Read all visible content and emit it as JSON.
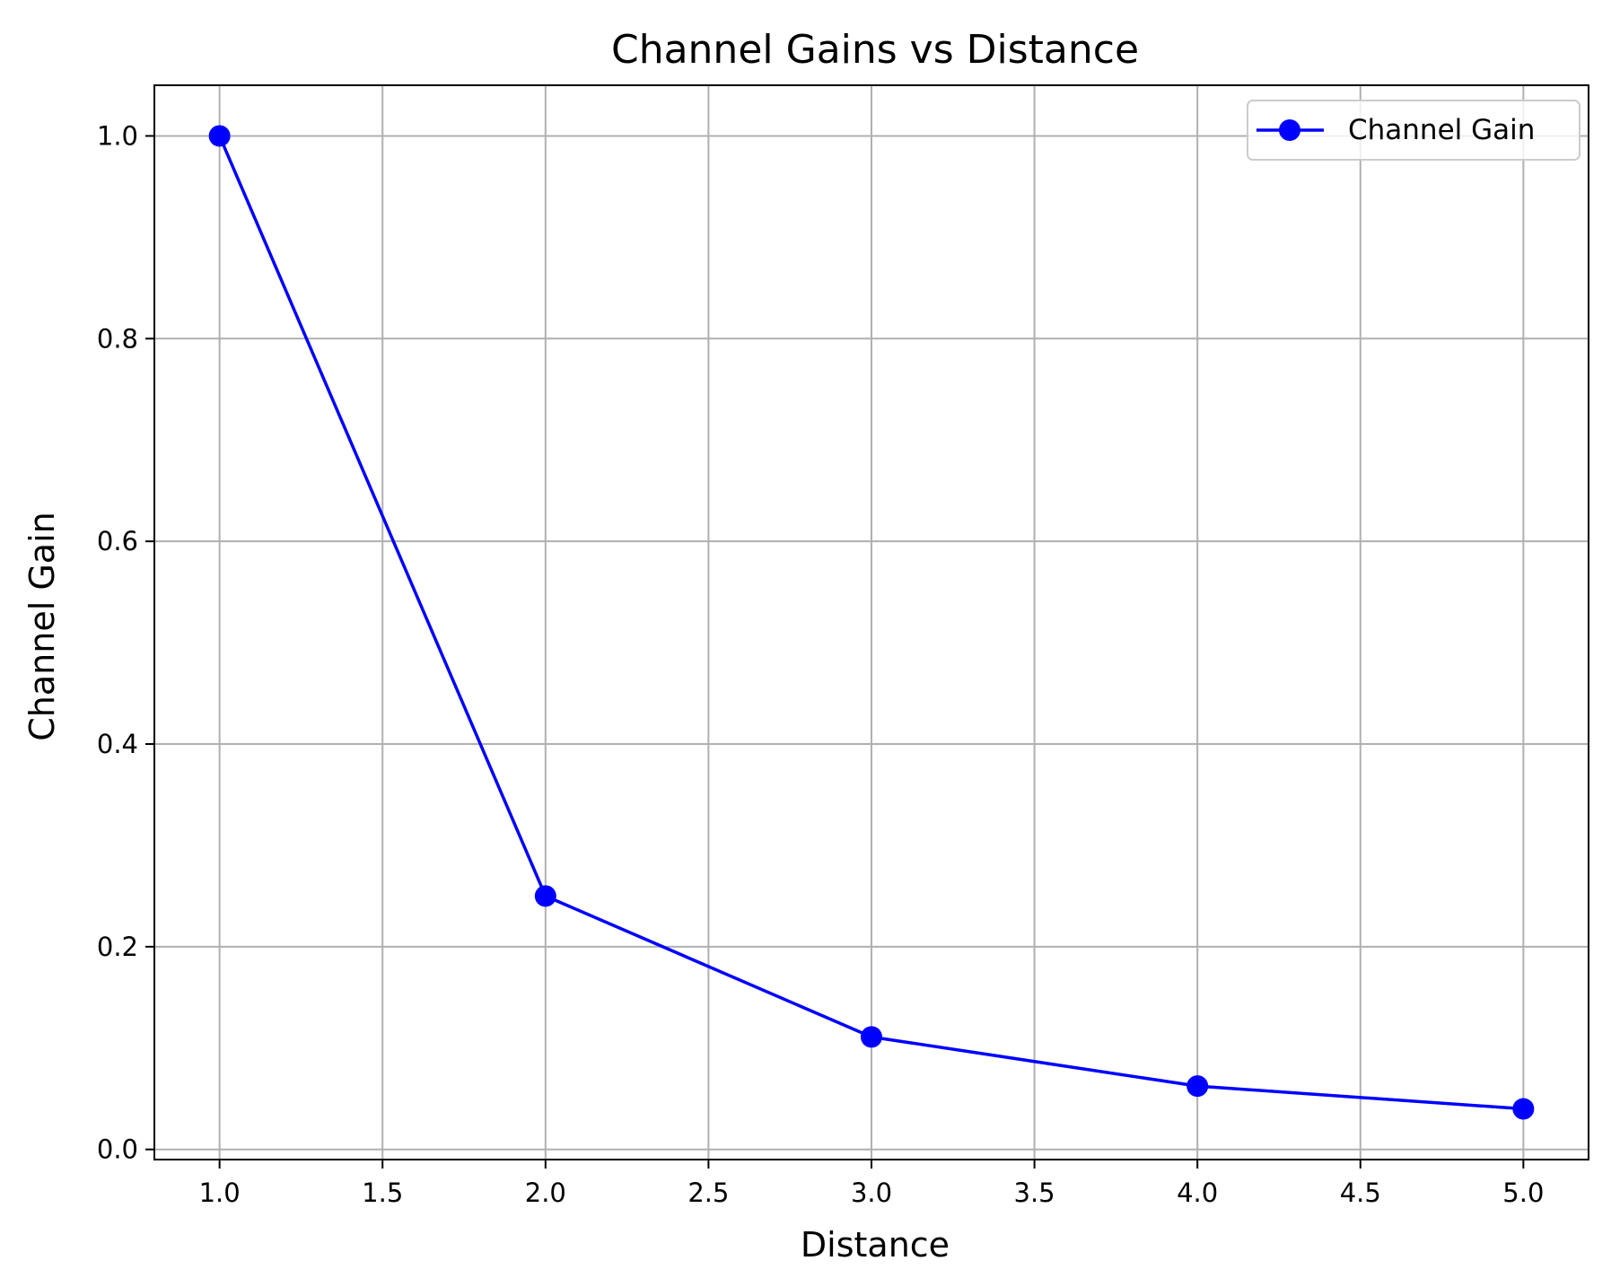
{
  "chart_data": {
    "type": "line",
    "title": "Channel Gains vs Distance",
    "xlabel": "Distance",
    "ylabel": "Channel Gain",
    "xlim": [
      0.8,
      5.2
    ],
    "ylim": [
      -0.01,
      1.05
    ],
    "xticks": [
      1.0,
      1.5,
      2.0,
      2.5,
      3.0,
      3.5,
      4.0,
      4.5,
      5.0
    ],
    "xtick_labels": [
      "1.0",
      "1.5",
      "2.0",
      "2.5",
      "3.0",
      "3.5",
      "4.0",
      "4.5",
      "5.0"
    ],
    "yticks": [
      0.0,
      0.2,
      0.4,
      0.6,
      0.8,
      1.0
    ],
    "ytick_labels": [
      "0.0",
      "0.2",
      "0.4",
      "0.6",
      "0.8",
      "1.0"
    ],
    "grid": true,
    "legend_position": "top-right",
    "series": [
      {
        "name": "Channel Gain",
        "color": "#0000ff",
        "marker": "circle",
        "x": [
          1.0,
          2.0,
          3.0,
          4.0,
          5.0
        ],
        "y": [
          1.0,
          0.25,
          0.111,
          0.0625,
          0.04
        ]
      }
    ]
  }
}
